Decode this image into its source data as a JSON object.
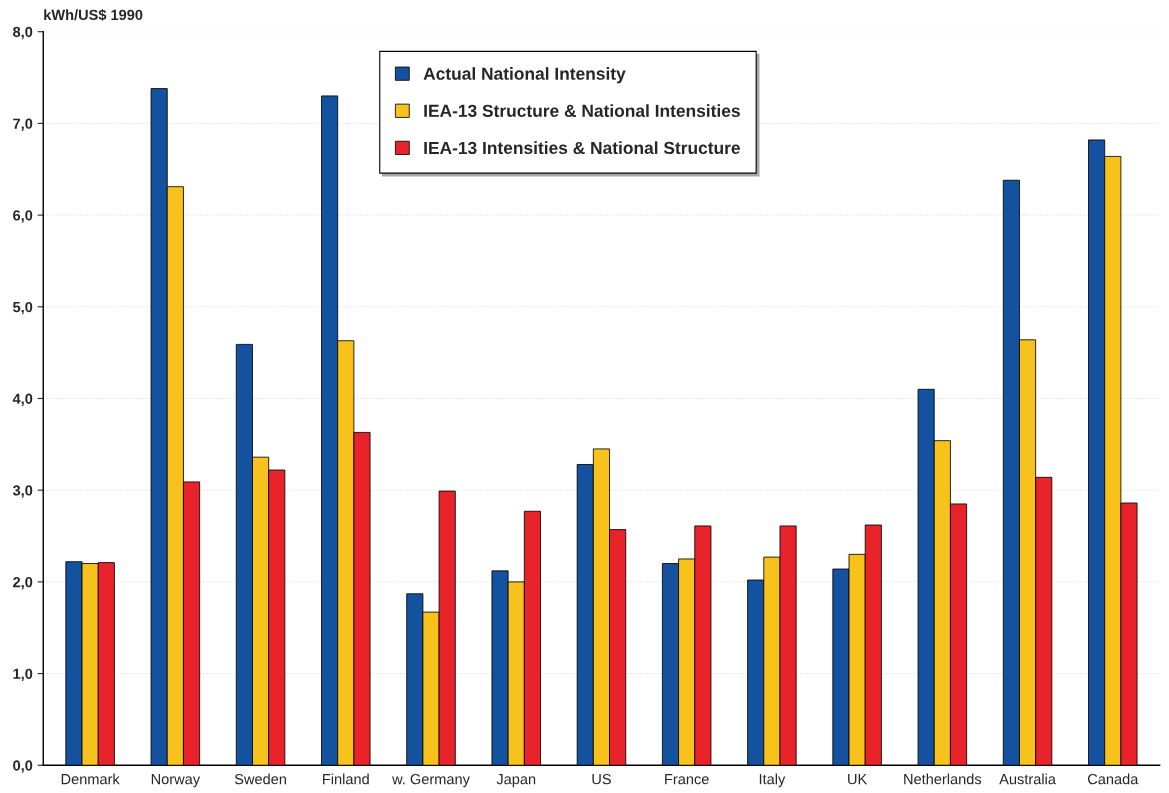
{
  "chart_data": {
    "type": "bar",
    "ylabel": "kWh/US$ 1990",
    "categories": [
      "Denmark",
      "Norway",
      "Sweden",
      "Finland",
      "w. Germany",
      "Japan",
      "US",
      "France",
      "Italy",
      "UK",
      "Netherlands",
      "Australia",
      "Canada"
    ],
    "series": [
      {
        "name": "Actual National Intensity",
        "color": "#1452a0",
        "values": [
          2.22,
          7.38,
          4.59,
          7.3,
          1.87,
          2.12,
          3.28,
          2.2,
          2.02,
          2.14,
          4.1,
          6.38,
          6.82
        ]
      },
      {
        "name": "IEA-13 Structure & National Intensities",
        "color": "#f7c21c",
        "values": [
          2.2,
          6.31,
          3.36,
          4.63,
          1.67,
          2.0,
          3.45,
          2.25,
          2.27,
          2.3,
          3.54,
          4.64,
          6.64
        ]
      },
      {
        "name": "IEA-13 Intensities & National Structure",
        "color": "#e8242a",
        "values": [
          2.21,
          3.09,
          3.22,
          3.63,
          2.99,
          2.77,
          2.57,
          2.61,
          2.61,
          2.62,
          2.85,
          3.14,
          2.86
        ]
      }
    ],
    "ylim": [
      0,
      8
    ],
    "yticks": [
      {
        "value": 0,
        "label": "0,0"
      },
      {
        "value": 1,
        "label": "1,0"
      },
      {
        "value": 2,
        "label": "2,0"
      },
      {
        "value": 3,
        "label": "3,0"
      },
      {
        "value": 4,
        "label": "4,0"
      },
      {
        "value": 5,
        "label": "5,0"
      },
      {
        "value": 6,
        "label": "6,0"
      },
      {
        "value": 7,
        "label": "7,0"
      },
      {
        "value": 8,
        "label": "8,0"
      }
    ],
    "grid": "y",
    "legend": "top"
  }
}
